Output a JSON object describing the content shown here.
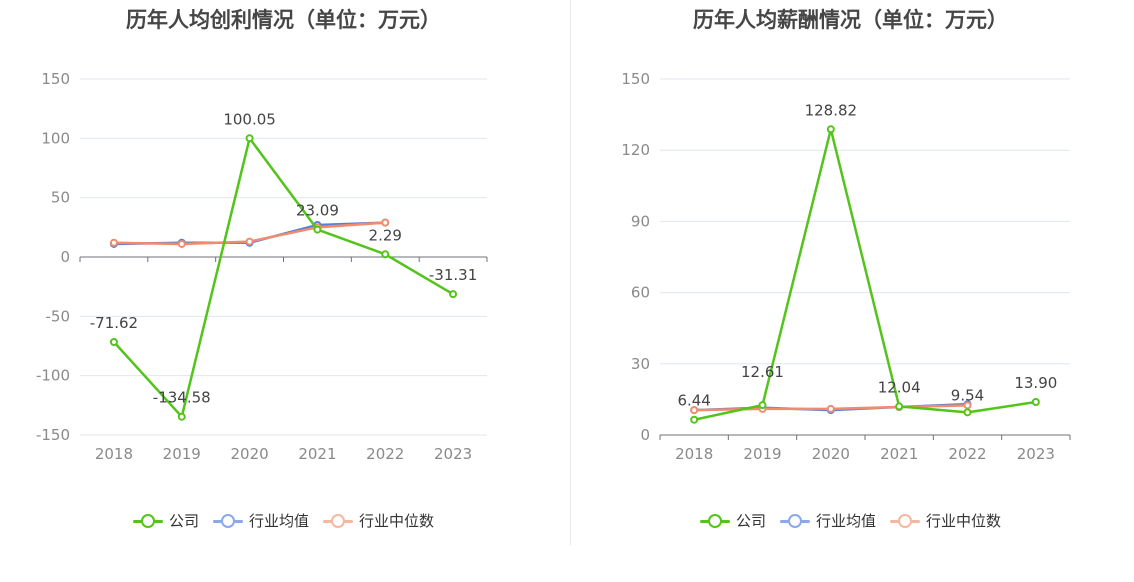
{
  "chart_data": [
    {
      "type": "line",
      "title": "历年人均创利情况（单位：万元）",
      "categories": [
        "2018",
        "2019",
        "2020",
        "2021",
        "2022",
        "2023"
      ],
      "ylim": [
        -150,
        150
      ],
      "yticks": [
        "150",
        "100",
        "50",
        "0",
        "-50",
        "-100",
        "-150"
      ],
      "ytick_values": [
        150,
        100,
        50,
        0,
        -50,
        -100,
        -150
      ],
      "series": [
        {
          "name": "公司",
          "color": "#52c41a",
          "values": [
            -71.62,
            -134.58,
            100.05,
            23.09,
            2.29,
            -31.31
          ],
          "labels": [
            "-71.62",
            "-134.58",
            "100.05",
            "23.09",
            "2.29",
            "-31.31"
          ]
        },
        {
          "name": "行业均值",
          "color": "#5b7fd6",
          "values": [
            11,
            12,
            12,
            27,
            29,
            null
          ]
        },
        {
          "name": "行业中位数",
          "color": "#f08c6b",
          "values": [
            12,
            11,
            13,
            25,
            29,
            null
          ]
        }
      ]
    },
    {
      "type": "line",
      "title": "历年人均薪酬情况（单位：万元）",
      "categories": [
        "2018",
        "2019",
        "2020",
        "2021",
        "2022",
        "2023"
      ],
      "ylim": [
        0,
        150
      ],
      "yticks": [
        "150",
        "120",
        "90",
        "60",
        "30",
        "0"
      ],
      "ytick_values": [
        150,
        120,
        90,
        60,
        30,
        0
      ],
      "series": [
        {
          "name": "公司",
          "color": "#52c41a",
          "values": [
            6.44,
            12.61,
            128.82,
            12.04,
            9.54,
            13.9
          ],
          "labels": [
            "6.44",
            "12.61",
            "128.82",
            "12.04",
            "9.54",
            "13.90"
          ]
        },
        {
          "name": "行业均值",
          "color": "#5b7fd6",
          "values": [
            10.5,
            11.5,
            10.5,
            11.8,
            13,
            null
          ]
        },
        {
          "name": "行业中位数",
          "color": "#f08c6b",
          "values": [
            10.5,
            11,
            11,
            11.8,
            12.5,
            null
          ]
        }
      ]
    }
  ],
  "legend": {
    "items": [
      {
        "label": "公司",
        "color": "#52c41a"
      },
      {
        "label": "行业均值",
        "color": "#8aa8ec"
      },
      {
        "label": "行业中位数",
        "color": "#f6b7a0"
      }
    ]
  }
}
